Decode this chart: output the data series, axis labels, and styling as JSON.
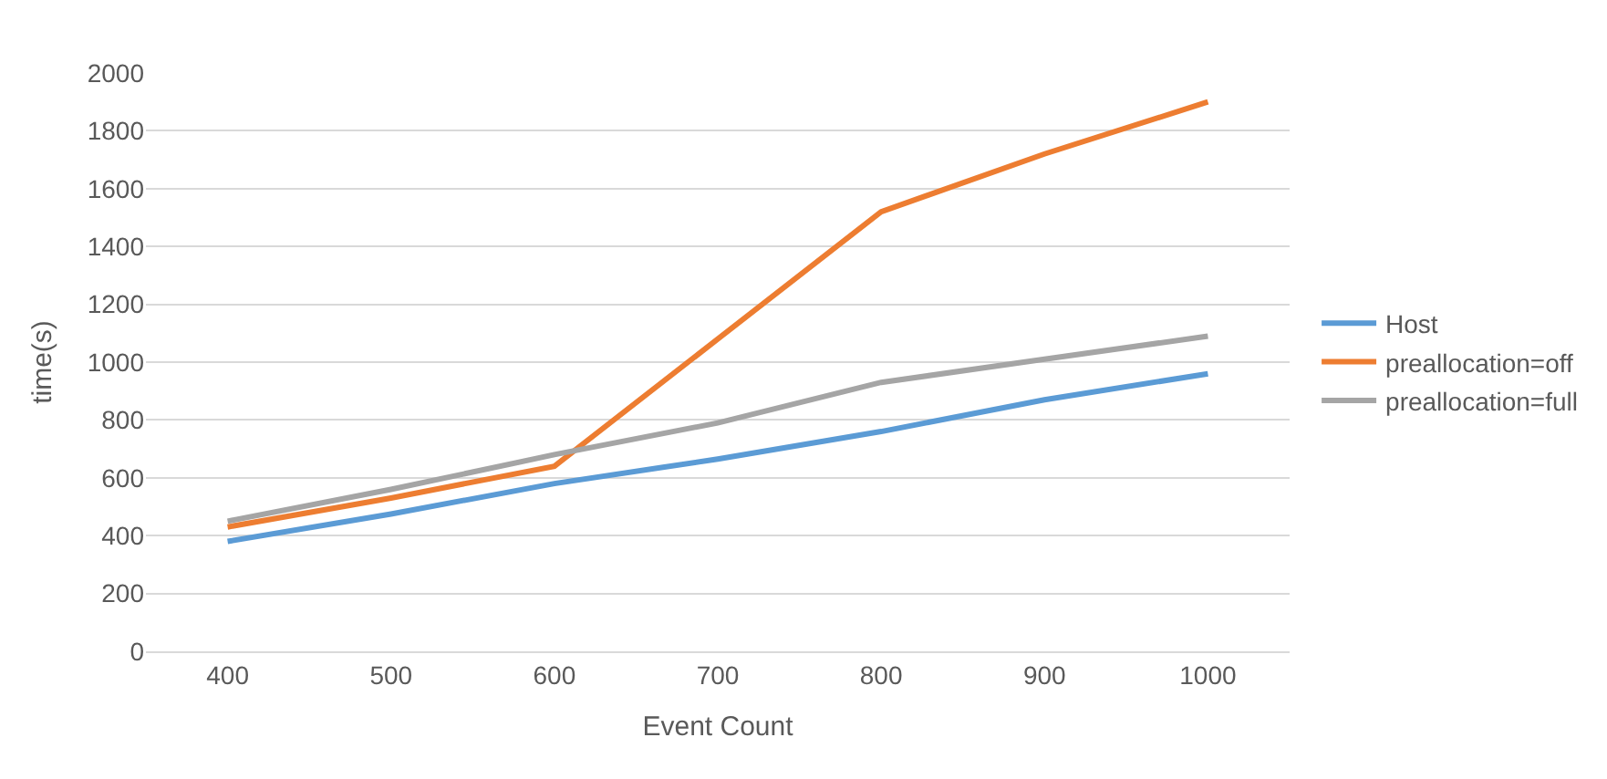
{
  "chart_data": {
    "type": "line",
    "xlabel": "Event Count",
    "ylabel": "time(s)",
    "categories": [
      "400",
      "500",
      "600",
      "700",
      "800",
      "900",
      "1000"
    ],
    "series": [
      {
        "name": "Host",
        "color": "#5b9bd5",
        "values": [
          380,
          475,
          580,
          665,
          760,
          870,
          960
        ]
      },
      {
        "name": "preallocation=off",
        "color": "#ed7d31",
        "values": [
          430,
          530,
          640,
          1080,
          1520,
          1720,
          1900
        ]
      },
      {
        "name": "preallocation=full",
        "color": "#a5a5a5",
        "values": [
          450,
          560,
          680,
          790,
          930,
          1010,
          1090
        ]
      }
    ],
    "ylim": [
      0,
      2000
    ],
    "yticks": [
      0,
      200,
      400,
      600,
      800,
      1000,
      1200,
      1400,
      1600,
      1800,
      2000
    ],
    "grid": "y",
    "legend": "right",
    "marker": "none",
    "line_style": "solid"
  }
}
